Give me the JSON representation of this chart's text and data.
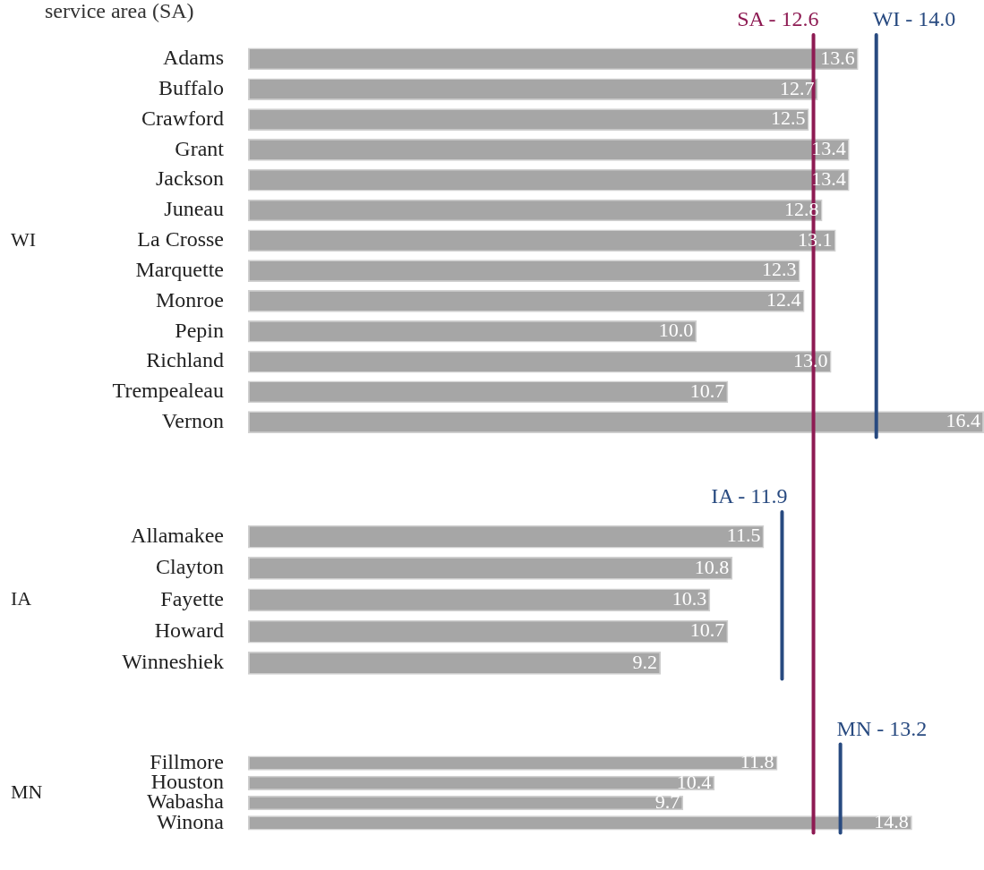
{
  "chart_data": [
    {
      "type": "bar",
      "orientation": "horizontal",
      "title": "service area (SA)",
      "ylabel": "WI",
      "color": "#a6a6a6",
      "categories": [
        "Adams",
        "Buffalo",
        "Crawford",
        "Grant",
        "Jackson",
        "Juneau",
        "La Crosse",
        "Marquette",
        "Monroe",
        "Pepin",
        "Richland",
        "Trempealeau",
        "Vernon"
      ],
      "values": [
        13.6,
        12.7,
        12.5,
        13.4,
        13.4,
        12.8,
        13.1,
        12.3,
        12.4,
        10.0,
        13.0,
        10.7,
        16.4
      ],
      "value_labels": [
        "13.6",
        "12.7",
        "12.5",
        "13.4",
        "13.4",
        "12.8",
        "13.1",
        "12.3",
        "12.4",
        "10.0",
        "13.0",
        "10.7",
        "16.4"
      ],
      "ref_lines": [
        {
          "axis": "x",
          "value": 12.6,
          "label": "SA - 12.6",
          "color": "#8e1b53"
        },
        {
          "axis": "x",
          "value": 14.0,
          "label": "WI - 14.0",
          "color": "#284a80"
        }
      ]
    },
    {
      "type": "bar",
      "orientation": "horizontal",
      "ylabel": "IA",
      "color": "#a6a6a6",
      "categories": [
        "Allamakee",
        "Clayton",
        "Fayette",
        "Howard",
        "Winneshiek"
      ],
      "values": [
        11.5,
        10.8,
        10.3,
        10.7,
        9.2
      ],
      "value_labels": [
        "11.5",
        "10.8",
        "10.3",
        "10.7",
        "9.2"
      ],
      "ref_lines": [
        {
          "axis": "x",
          "value": 12.6,
          "label": null,
          "color": "#8e1b53"
        },
        {
          "axis": "x",
          "value": 11.9,
          "label": "IA - 11.9",
          "color": "#284a80"
        }
      ]
    },
    {
      "type": "bar",
      "orientation": "horizontal",
      "ylabel": "MN",
      "color": "#a6a6a6",
      "categories": [
        "Fillmore",
        "Houston",
        "Wabasha",
        "Winona"
      ],
      "values": [
        11.8,
        10.4,
        9.7,
        14.8
      ],
      "value_labels": [
        "11.8",
        "10.4",
        "9.7",
        "14.8"
      ],
      "ref_lines": [
        {
          "axis": "x",
          "value": 12.6,
          "label": null,
          "color": "#8e1b53"
        },
        {
          "axis": "x",
          "value": 13.2,
          "label": "MN - 13.2",
          "color": "#284a80"
        }
      ]
    }
  ]
}
